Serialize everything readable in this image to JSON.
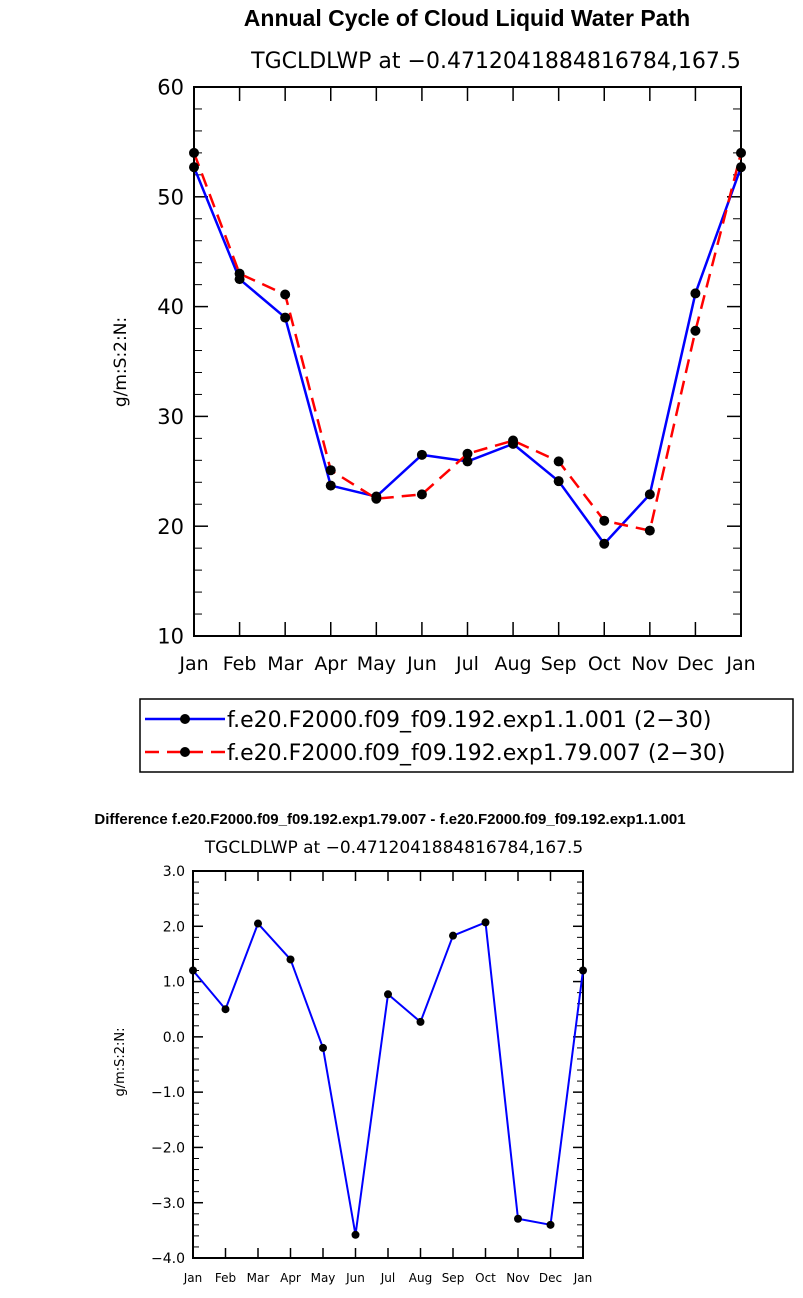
{
  "chart_data": [
    {
      "type": "line",
      "title": "Annual Cycle of Cloud Liquid Water Path",
      "subtitle": "TGCLDLWP  at  −0.4712041884816784,167.5",
      "ylabel": "g/m:S:2:N:",
      "xlabel": "",
      "ylim": [
        10,
        60
      ],
      "yticks": [
        "10",
        "20",
        "30",
        "40",
        "50",
        "60"
      ],
      "categories": [
        "Jan",
        "Feb",
        "Mar",
        "Apr",
        "May",
        "Jun",
        "Jul",
        "Aug",
        "Sep",
        "Oct",
        "Nov",
        "Dec",
        "Jan"
      ],
      "series": [
        {
          "name": "f.e20.F2000.f09_f09.192.exp1.1.001 (2−30)",
          "color": "#0000ff",
          "dash": "solid",
          "values": [
            52.7,
            42.5,
            39.0,
            23.7,
            22.7,
            26.5,
            25.9,
            27.5,
            24.1,
            18.4,
            22.9,
            41.2,
            52.7
          ]
        },
        {
          "name": "f.e20.F2000.f09_f09.192.exp1.79.007 (2−30)",
          "color": "#ff0000",
          "dash": "dashed",
          "values": [
            54.0,
            43.0,
            41.1,
            25.1,
            22.5,
            22.9,
            26.6,
            27.8,
            25.9,
            20.5,
            19.6,
            37.8,
            54.0
          ]
        }
      ]
    },
    {
      "type": "line",
      "title": "Difference f.e20.F2000.f09_f09.192.exp1.79.007 - f.e20.F2000.f09_f09.192.exp1.1.001",
      "subtitle": "TGCLDLWP  at  −0.4712041884816784,167.5",
      "ylabel": "g/m:S:2:N:",
      "xlabel": "",
      "ylim": [
        -4.0,
        3.0
      ],
      "yticks": [
        "−4.0",
        "−3.0",
        "−2.0",
        "−1.0",
        "0.0",
        "1.0",
        "2.0",
        "3.0"
      ],
      "categories": [
        "Jan",
        "Feb",
        "Mar",
        "Apr",
        "May",
        "Jun",
        "Jul",
        "Aug",
        "Sep",
        "Oct",
        "Nov",
        "Dec",
        "Jan"
      ],
      "series": [
        {
          "name": "difference",
          "color": "#0000ff",
          "dash": "solid",
          "values": [
            1.2,
            0.5,
            2.05,
            1.4,
            -0.2,
            -3.58,
            0.77,
            0.27,
            1.83,
            2.07,
            -3.29,
            -3.4,
            1.2
          ]
        }
      ]
    }
  ]
}
